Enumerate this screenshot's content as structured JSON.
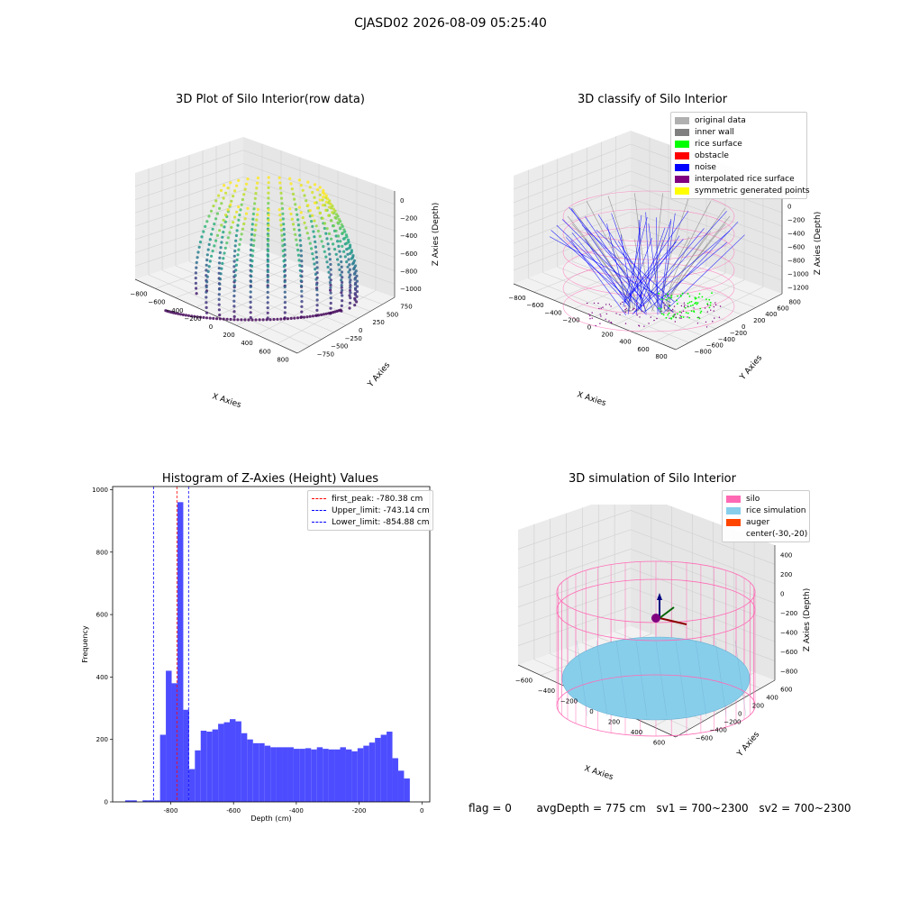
{
  "suptitle": "CJASD02 2026-08-09 05:25:40",
  "chart_data": [
    {
      "type": "scatter",
      "title": "3D Plot of Silo Interior(row data)",
      "xlabel": "X Axies",
      "ylabel": "Y Axies",
      "zlabel": "Z Axies (Depth)",
      "x_ticks": [
        "−800",
        "−600",
        "−400",
        "−200",
        "0",
        "200",
        "400",
        "600",
        "800"
      ],
      "y_ticks": [
        "−750",
        "−500",
        "−250",
        "0",
        "250",
        "500",
        "750"
      ],
      "z_ticks": [
        "−1000",
        "−800",
        "−600",
        "−400",
        "−200",
        "0"
      ],
      "colormap": "viridis"
    },
    {
      "type": "scatter",
      "title": "3D classify of Silo Interior",
      "xlabel": "X Axies",
      "ylabel": "Y Axies",
      "zlabel": "Z Axies (Depth)",
      "x_ticks": [
        "−800",
        "−600",
        "−400",
        "−200",
        "0",
        "200",
        "400",
        "600",
        "800"
      ],
      "y_ticks": [
        "−800",
        "−600",
        "−400",
        "−200",
        "0",
        "200",
        "400",
        "600",
        "800"
      ],
      "z_ticks": [
        "−1200",
        "−1000",
        "−800",
        "−600",
        "−400",
        "−200",
        "0",
        "200"
      ],
      "legend_position": "top-right",
      "legend": [
        {
          "label": "original data",
          "color": "#b0b0b0"
        },
        {
          "label": "inner wall",
          "color": "#808080"
        },
        {
          "label": "rice surface",
          "color": "#00ff00"
        },
        {
          "label": "obstacle",
          "color": "#ff0000"
        },
        {
          "label": "noise",
          "color": "#0000ff"
        },
        {
          "label": "interpolated rice surface",
          "color": "#800080"
        },
        {
          "label": "symmetric generated points",
          "color": "#ffff00"
        }
      ]
    },
    {
      "type": "bar",
      "title": "Histogram of Z-Axies (Height) Values",
      "xlabel": "Depth (cm)",
      "ylabel": "Frequency",
      "xlim": [
        -985,
        25
      ],
      "ylim": [
        0,
        1010
      ],
      "x_ticks": [
        -800,
        -600,
        -400,
        -200,
        0
      ],
      "y_ticks": [
        0,
        200,
        400,
        600,
        800,
        1000
      ],
      "bin_width": 18.5,
      "bin_starts": [
        -945,
        -926.5,
        -908,
        -889.5,
        -871,
        -852.5,
        -834,
        -815.5,
        -797,
        -778.5,
        -760,
        -741.5,
        -723,
        -704.5,
        -686,
        -667.5,
        -649,
        -630.5,
        -612,
        -593.5,
        -575,
        -556.5,
        -538,
        -519.5,
        -501,
        -482.5,
        -464,
        -445.5,
        -427,
        -408.5,
        -390,
        -371.5,
        -353,
        -334.5,
        -316,
        -297.5,
        -279,
        -260.5,
        -242,
        -223.5,
        -205,
        -186.5,
        -168,
        -149.5,
        -131,
        -112.5,
        -94,
        -75.5,
        -57,
        -38.5,
        -20
      ],
      "values": [
        5,
        5,
        0,
        5,
        5,
        5,
        215,
        420,
        380,
        960,
        295,
        105,
        165,
        228,
        225,
        232,
        250,
        255,
        265,
        258,
        220,
        200,
        188,
        188,
        180,
        175,
        175,
        175,
        175,
        170,
        170,
        172,
        168,
        175,
        170,
        168,
        168,
        175,
        168,
        162,
        172,
        180,
        190,
        205,
        215,
        225,
        140,
        100,
        75,
        0,
        0
      ],
      "bar_color": "#4d4dff",
      "legend_position": "top-right",
      "reference_lines": [
        {
          "label": "first_peak: -780.38 cm",
          "x": -780.38,
          "color": "#ff0000"
        },
        {
          "label": "Upper_limit: -743.14 cm",
          "x": -743.14,
          "color": "#0000ff"
        },
        {
          "label": "Lower_limit: -854.88 cm",
          "x": -854.88,
          "color": "#0000ff"
        }
      ]
    },
    {
      "type": "surface",
      "title": "3D simulation of Silo Interior",
      "xlabel": "X Axies",
      "ylabel": "Y Axies",
      "zlabel": "Z Axies (Depth)",
      "x_ticks": [
        "−600",
        "−400",
        "−200",
        "0",
        "200",
        "400",
        "600"
      ],
      "y_ticks": [
        "−600",
        "−400",
        "−200",
        "0",
        "200",
        "400",
        "600"
      ],
      "z_ticks": [
        "−800",
        "−600",
        "−400",
        "−200",
        "0",
        "200",
        "400"
      ],
      "legend_position": "top-right",
      "legend": [
        {
          "label": "silo",
          "color": "#ff69b4"
        },
        {
          "label": "rice simulation",
          "color": "#87ceeb"
        },
        {
          "label": "auger",
          "color": "#ff4500"
        },
        {
          "label": "center(-30,-20)",
          "color": ""
        }
      ]
    }
  ],
  "status": {
    "flag": "flag = 0",
    "avg_depth": "avgDepth = 775 cm",
    "sv1": "sv1 = 700~2300",
    "sv2": "sv2 = 700~2300"
  }
}
